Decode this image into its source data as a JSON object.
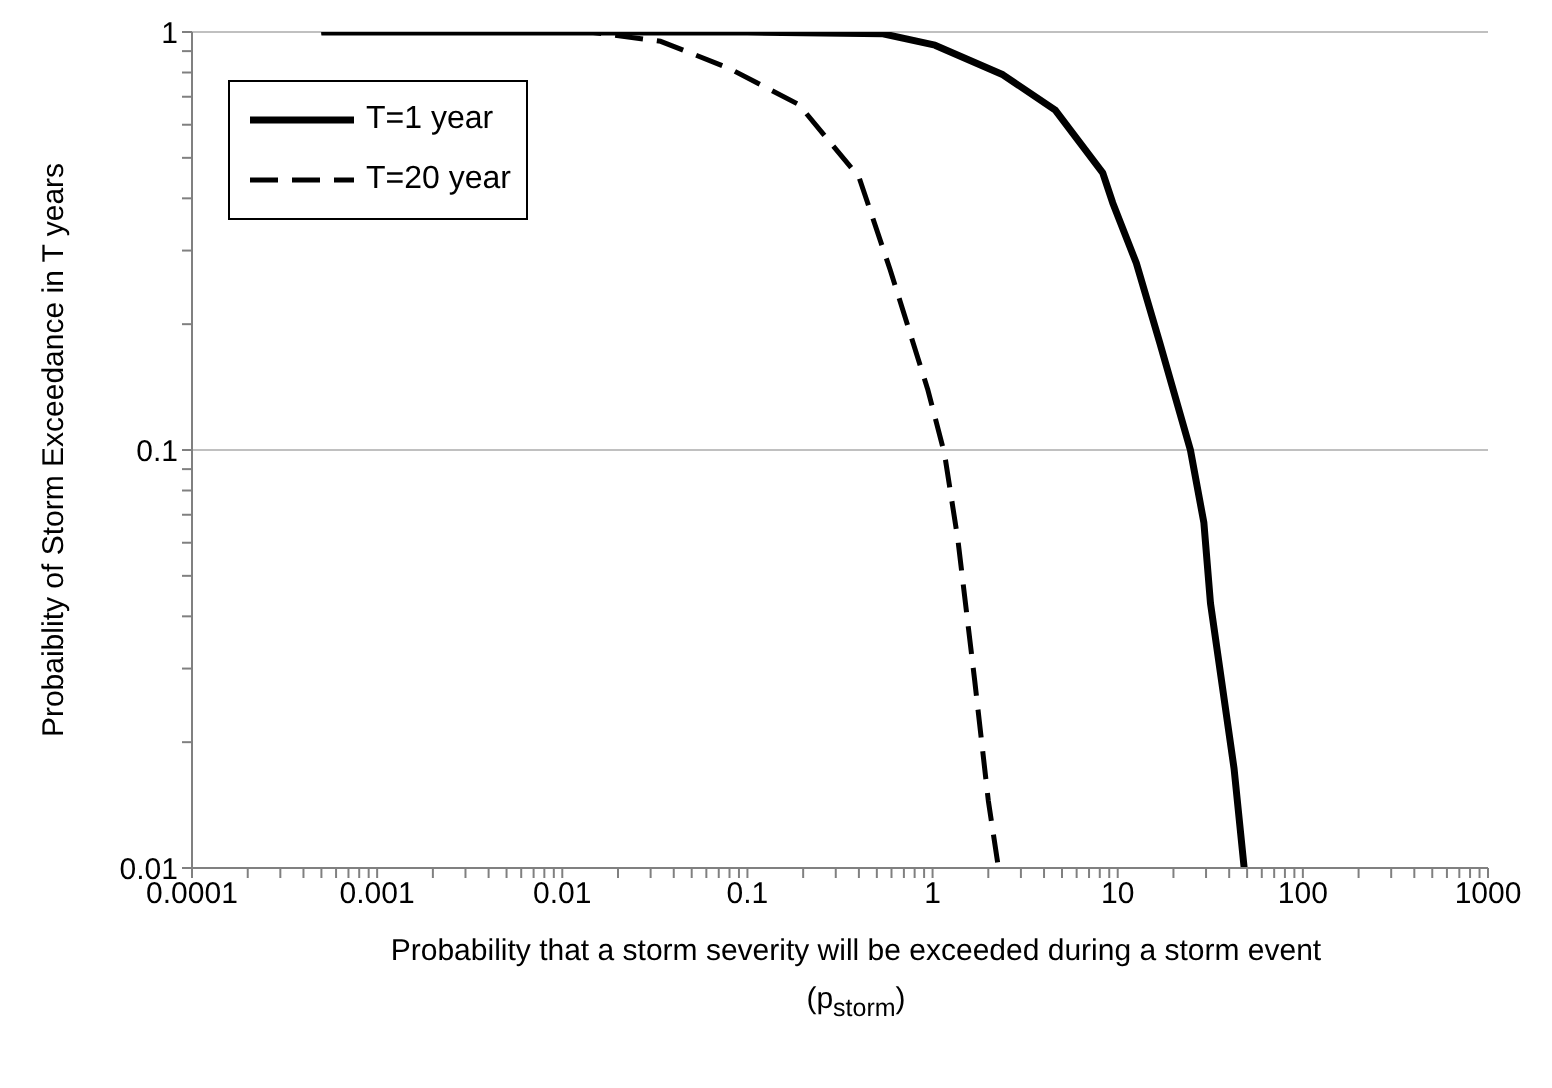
{
  "chart_data": {
    "type": "line",
    "xlabel": "Probability that a storm severity will be exceeded during a storm event (p$_{storm}$)",
    "ylabel": "Probaiblity of Storm Exceedance in T years",
    "log": "xy",
    "grid": "y",
    "legend": "top left",
    "marker": "none",
    "xlim": [
      0.0001,
      1000
    ],
    "xticks": [
      0.0001,
      {
        "value": 0.0002,
        "label": null
      },
      {
        "value": 0.0003,
        "label": null
      },
      {
        "value": 0.0004,
        "label": null
      },
      {
        "value": 0.0005,
        "label": null
      },
      {
        "value": 0.0006,
        "label": null
      },
      {
        "value": 0.0007,
        "label": null
      },
      {
        "value": 0.0008,
        "label": null
      },
      {
        "value": 0.0009,
        "label": null
      },
      0.001,
      {
        "value": 0.002,
        "label": null
      },
      {
        "value": 0.003,
        "label": null
      },
      {
        "value": 0.004,
        "label": null
      },
      {
        "value": 0.005,
        "label": null
      },
      {
        "value": 0.006,
        "label": null
      },
      {
        "value": 0.007,
        "label": null
      },
      {
        "value": 0.008,
        "label": null
      },
      {
        "value": 0.009,
        "label": null
      },
      0.01,
      {
        "value": 0.02,
        "label": null
      },
      {
        "value": 0.03,
        "label": null
      },
      {
        "value": 0.04,
        "label": null
      },
      {
        "value": 0.05,
        "label": null
      },
      {
        "value": 0.06,
        "label": null
      },
      {
        "value": 0.07,
        "label": null
      },
      {
        "value": 0.08,
        "label": null
      },
      {
        "value": 0.09,
        "label": null
      },
      0.1,
      {
        "value": 0.2,
        "label": null
      },
      {
        "value": 0.3,
        "label": null
      },
      {
        "value": 0.4,
        "label": null
      },
      {
        "value": 0.5,
        "label": null
      },
      {
        "value": 0.6,
        "label": null
      },
      {
        "value": 0.7,
        "label": null
      },
      {
        "value": 0.8,
        "label": null
      },
      {
        "value": 0.9,
        "label": null
      },
      1,
      {
        "value": 2,
        "label": null
      },
      {
        "value": 3,
        "label": null
      },
      {
        "value": 4,
        "label": null
      },
      {
        "value": 5,
        "label": null
      },
      {
        "value": 6,
        "label": null
      },
      {
        "value": 7,
        "label": null
      },
      {
        "value": 8,
        "label": null
      },
      {
        "value": 9,
        "label": null
      },
      10,
      {
        "value": 20,
        "label": null
      },
      {
        "value": 30,
        "label": null
      },
      {
        "value": 40,
        "label": null
      },
      {
        "value": 50,
        "label": null
      },
      {
        "value": 60,
        "label": null
      },
      {
        "value": 70,
        "label": null
      },
      {
        "value": 80,
        "label": null
      },
      {
        "value": 90,
        "label": null
      },
      100,
      {
        "value": 200,
        "label": null
      },
      {
        "value": 300,
        "label": null
      },
      {
        "value": 400,
        "label": null
      },
      {
        "value": 500,
        "label": null
      },
      {
        "value": 600,
        "label": null
      },
      {
        "value": 700,
        "label": null
      },
      {
        "value": 800,
        "label": null
      },
      {
        "value": 900,
        "label": null
      },
      1000
    ],
    "ylim": [
      0.01,
      1
    ],
    "yticks": [
      0.01,
      {
        "value": 0.02,
        "label": null
      },
      {
        "value": 0.03,
        "label": null
      },
      {
        "value": 0.04,
        "label": null
      },
      {
        "value": 0.05,
        "label": null
      },
      {
        "value": 0.06,
        "label": null
      },
      {
        "value": 0.07,
        "label": null
      },
      {
        "value": 0.08,
        "label": null
      },
      {
        "value": 0.09,
        "label": null
      },
      0.1,
      {
        "value": 0.2,
        "label": null
      },
      {
        "value": 0.3,
        "label": null
      },
      {
        "value": 0.4,
        "label": null
      },
      {
        "value": 0.5,
        "label": null
      },
      {
        "value": 0.6,
        "label": null
      },
      {
        "value": 0.7,
        "label": null
      },
      {
        "value": 0.8,
        "label": null
      },
      {
        "value": 0.9,
        "label": null
      },
      1
    ],
    "series": [
      {
        "name": "T=1 year",
        "color": "#000000",
        "line_style": "solid",
        "x": [
          0.0005,
          0.01,
          0.1,
          0.54,
          1.03,
          2.4,
          4.6,
          8.3,
          9.4,
          12.6,
          16.9,
          24.7,
          29.2,
          31.7,
          42.5,
          48.2
        ],
        "values": [
          1,
          1,
          1,
          0.99,
          0.93,
          0.79,
          0.65,
          0.46,
          0.39,
          0.28,
          0.18,
          0.1,
          0.067,
          0.043,
          0.0173,
          0.01
        ]
      },
      {
        "name": "T=20 year",
        "color": "#000000",
        "line_style": "dashed",
        "x": [
          0.0005,
          0.005,
          0.014,
          0.034,
          0.079,
          0.19,
          0.4,
          0.59,
          0.94,
          1.16,
          1.37,
          1.69,
          2.0,
          2.27
        ],
        "values": [
          1,
          1,
          1,
          0.95,
          0.82,
          0.67,
          0.45,
          0.27,
          0.14,
          0.098,
          0.061,
          0.028,
          0.0145,
          0.01
        ]
      }
    ]
  }
}
